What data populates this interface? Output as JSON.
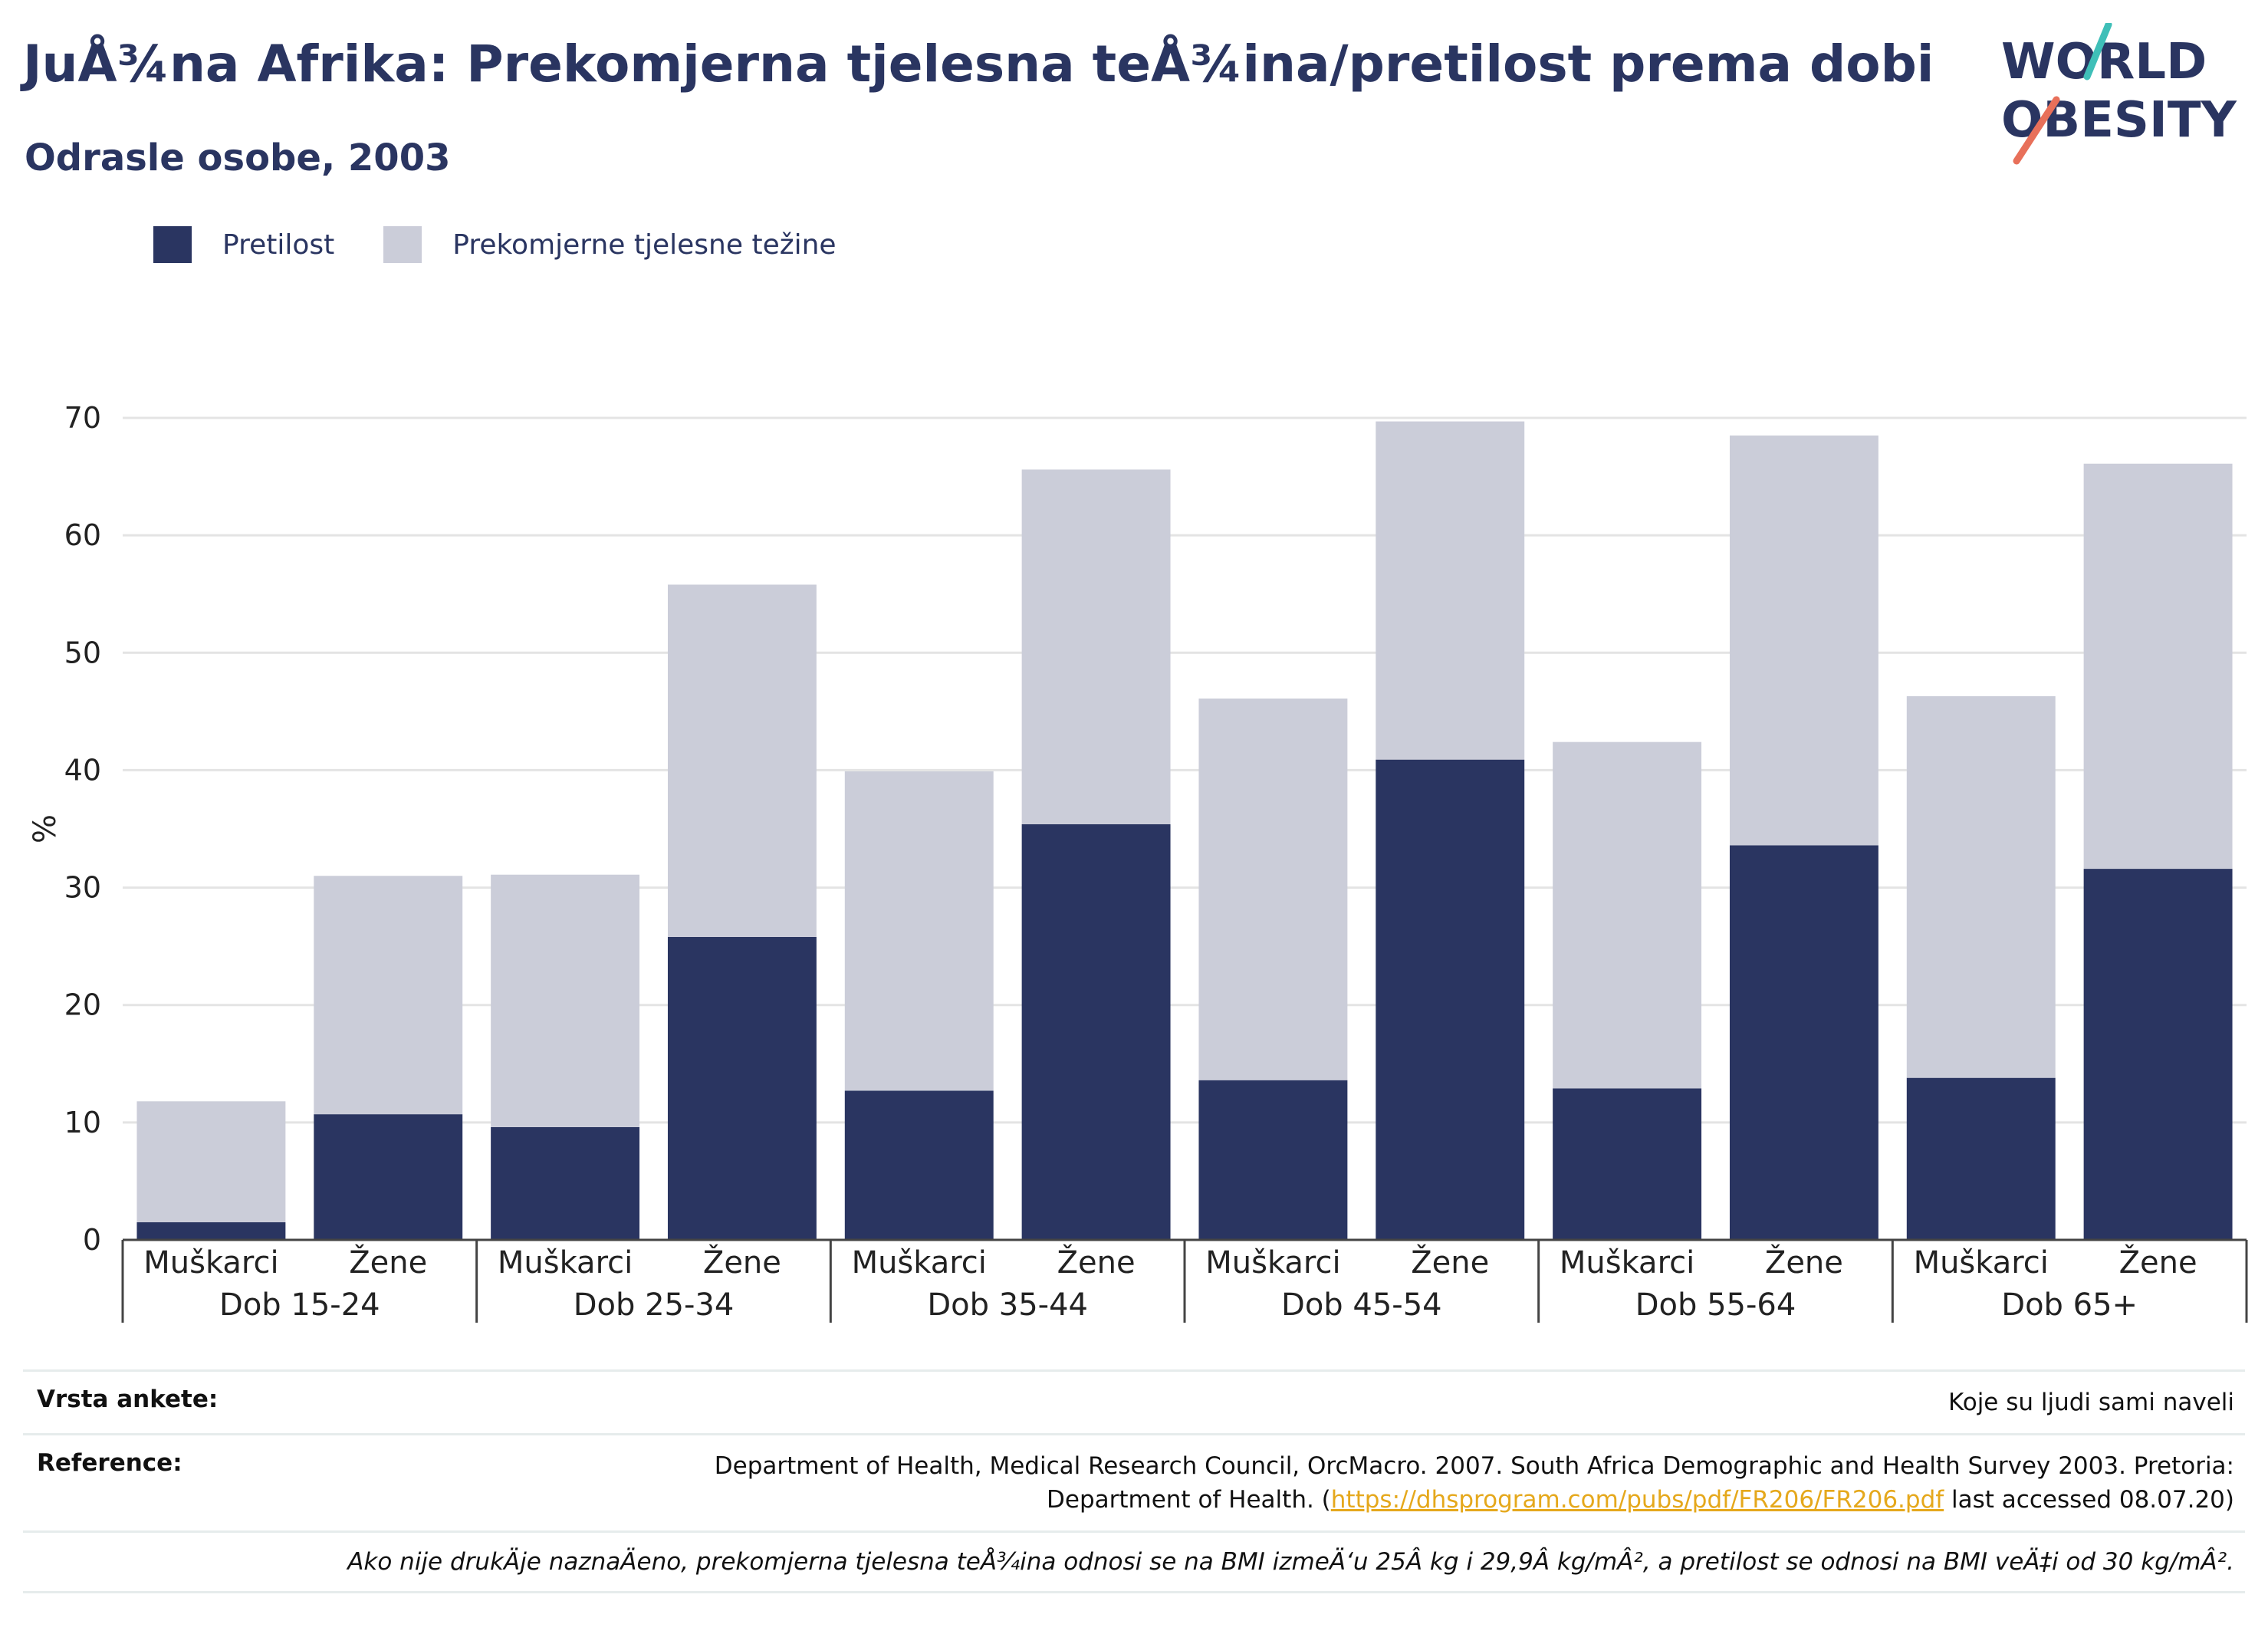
{
  "header": {
    "title": "JuÅ¾na Afrika: Prekomjerna tjelesna teÅ¾ina/pretilost prema dobi",
    "subtitle": "Odrasle osobe, 2003"
  },
  "logo": {
    "line1": "WORLD",
    "line2": "OBESITY",
    "accent_teal": "#3fbfb8",
    "accent_coral": "#e8705a"
  },
  "legend": {
    "items": [
      {
        "label": "Pretilost",
        "color": "#2a3561"
      },
      {
        "label": "Prekomjerne tjelesne težine",
        "color": "#cbcdd9"
      }
    ]
  },
  "chart_data": {
    "type": "bar",
    "stacked": true,
    "ylabel": "%",
    "ylim": [
      0,
      70
    ],
    "yticks": [
      0,
      10,
      20,
      30,
      40,
      50,
      60,
      70
    ],
    "grid": true,
    "legend_position": "top-left",
    "groups": [
      "Dob 15-24",
      "Dob 25-34",
      "Dob 35-44",
      "Dob 45-54",
      "Dob 55-64",
      "Dob 65+"
    ],
    "subcategories": [
      "Muškarci",
      "Žene"
    ],
    "series": [
      {
        "name": "Pretilost",
        "color": "#2a3561",
        "values": [
          1.5,
          10.7,
          9.6,
          25.8,
          12.7,
          35.4,
          13.6,
          40.9,
          12.9,
          33.6,
          13.8,
          31.6
        ]
      },
      {
        "name": "Prekomjerne tjelesne težine",
        "color": "#cbcdd9",
        "values": [
          10.3,
          20.3,
          21.5,
          30.0,
          27.2,
          30.2,
          32.5,
          28.8,
          29.5,
          34.9,
          32.5,
          34.5
        ]
      }
    ]
  },
  "footer": {
    "survey_label": "Vrsta ankete:",
    "survey_value": "Koje su ljudi sami naveli",
    "reference_label": "Reference:",
    "reference_line1": "Department of Health, Medical Research Council, OrcMacro. 2007. South Africa Demographic and Health Survey 2003. Pretoria:",
    "reference_line2_pre": "Department of Health. (",
    "reference_link": "https://dhsprogram.com/pubs/pdf/FR206/FR206.pdf",
    "reference_line2_post": " last accessed 08.07.20)",
    "note": "Ako nije drukÄje naznaÄeno, prekomjerna tjelesna teÅ¾ina odnosi se na BMI izmeÄ‘u 25Â kg i 29,9Â kg/mÂ², a pretilost se odnosi na BMI veÄ‡i od 30 kg/mÂ²."
  }
}
